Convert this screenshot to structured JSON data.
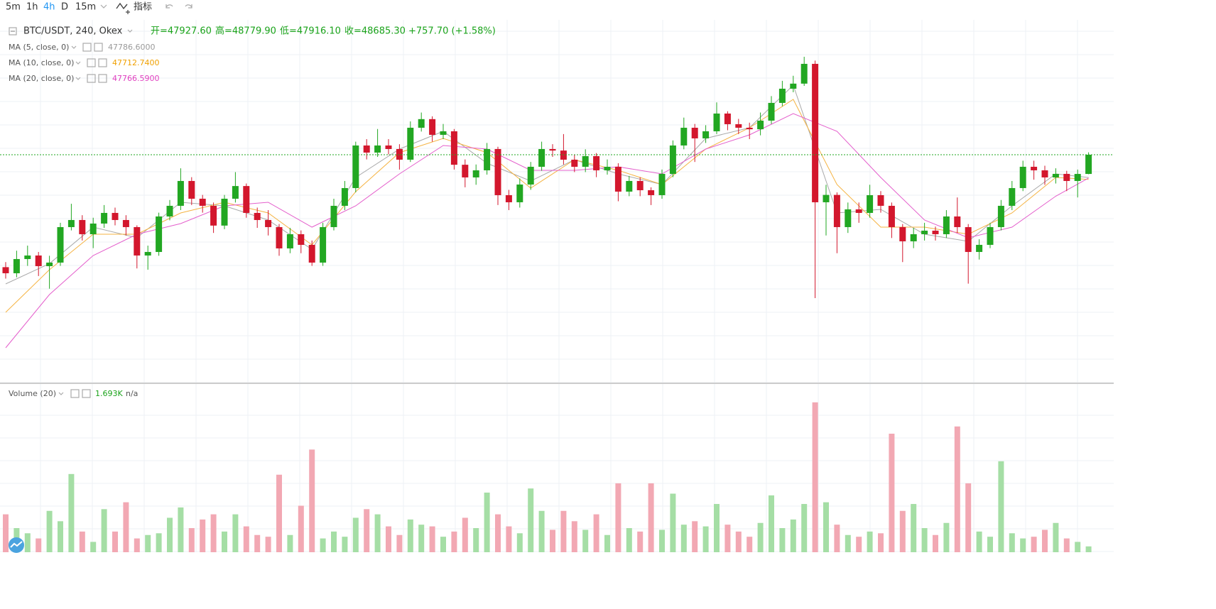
{
  "toolbar": {
    "intervals": [
      "5m",
      "1h",
      "4h",
      "D",
      "15m"
    ],
    "active_index": 2,
    "indicators": "指标"
  },
  "chart_data": {
    "type": "candlestick",
    "symbol": "BTC/USDT, 240, Okex",
    "ohlc_text": [
      "开=47927.60",
      "高=48779.90",
      "低=47916.10",
      "收=48685.30"
    ],
    "change_text": "+757.70 (+1.58%)",
    "up_color": "#22a722",
    "down_color": "#d3172d",
    "ylim": [
      39669,
      54005
    ],
    "open": [
      44250,
      44010,
      44570,
      44710,
      44290,
      44430,
      45830,
      46110,
      45550,
      45970,
      46390,
      46110,
      45830,
      44710,
      44850,
      46250,
      46670,
      47650,
      46950,
      46670,
      45890,
      46950,
      47450,
      46390,
      46110,
      45830,
      44990,
      45550,
      45130,
      44430,
      45830,
      46670,
      47370,
      49050,
      48770,
      49050,
      48910,
      48490,
      49750,
      50090,
      49470,
      49610,
      48290,
      47790,
      48070,
      48910,
      47090,
      46810,
      47510,
      48210,
      48910,
      48850,
      48490,
      48210,
      48630,
      48070,
      48210,
      47230,
      47650,
      47285,
      47090,
      47930,
      49050,
      49750,
      49330,
      49610,
      50310,
      49890,
      49750,
      49690,
      50030,
      50730,
      51290,
      51490,
      52270,
      46810,
      47100,
      45830,
      46530,
      46390,
      47090,
      46670,
      45830,
      45270,
      45550,
      45690,
      45550,
      46250,
      45830,
      44850,
      45130,
      45830,
      46670,
      47370,
      48210,
      48070,
      47790,
      47930,
      47650,
      47927.6
    ],
    "high": [
      44450,
      44900,
      45100,
      44850,
      44700,
      46000,
      46750,
      46300,
      46200,
      46700,
      46600,
      46300,
      45900,
      45100,
      46400,
      46900,
      48150,
      47800,
      47100,
      46800,
      47100,
      48000,
      47550,
      46600,
      46500,
      45950,
      45800,
      45700,
      45300,
      46000,
      46950,
      47650,
      49200,
      49300,
      49700,
      49300,
      49100,
      50000,
      50350,
      50200,
      49900,
      49700,
      48500,
      48300,
      49150,
      49000,
      47300,
      47750,
      48400,
      49200,
      49100,
      49500,
      48700,
      48900,
      48750,
      48500,
      48350,
      47850,
      47800,
      47400,
      48100,
      49250,
      50150,
      49900,
      49850,
      50750,
      50400,
      50100,
      49950,
      50350,
      51000,
      51600,
      51800,
      52550,
      52400,
      47500,
      47200,
      46800,
      46800,
      47500,
      47250,
      46800,
      45950,
      45800,
      46000,
      45850,
      46500,
      47000,
      45950,
      45350,
      46000,
      46900,
      47650,
      48450,
      48450,
      48250,
      48150,
      48050,
      48100,
      48779.9
    ],
    "low": [
      43800,
      43850,
      44300,
      43900,
      43400,
      44300,
      45700,
      45300,
      45000,
      45800,
      45900,
      45500,
      44200,
      44150,
      44700,
      46100,
      46500,
      46700,
      46400,
      45600,
      45750,
      46800,
      46200,
      45800,
      45500,
      44700,
      44800,
      44800,
      44300,
      44300,
      45700,
      46500,
      47200,
      48500,
      48600,
      48700,
      48100,
      48400,
      49600,
      49200,
      49300,
      48100,
      47400,
      47500,
      47900,
      46700,
      46500,
      46600,
      47300,
      48050,
      48600,
      48300,
      48000,
      48000,
      47800,
      47900,
      46850,
      47050,
      47050,
      46700,
      46950,
      47800,
      48900,
      48400,
      49150,
      49500,
      49650,
      49500,
      49300,
      49450,
      49900,
      50600,
      51150,
      51400,
      43030,
      45500,
      44800,
      45600,
      46000,
      46200,
      46400,
      45400,
      44450,
      45000,
      45300,
      45300,
      45400,
      45600,
      43600,
      44550,
      45000,
      45700,
      46500,
      47250,
      47700,
      47500,
      47550,
      47250,
      47000,
      47916.1
    ],
    "close": [
      44010,
      44570,
      44710,
      44290,
      44430,
      45830,
      46110,
      45550,
      45970,
      46390,
      46110,
      45830,
      44710,
      44850,
      46250,
      46670,
      47650,
      46950,
      46670,
      45890,
      46950,
      47450,
      46390,
      46110,
      45830,
      44990,
      45550,
      45130,
      44430,
      45830,
      46670,
      47370,
      49050,
      48770,
      49050,
      48910,
      48490,
      49750,
      50090,
      49470,
      49610,
      48290,
      47790,
      48070,
      48910,
      47090,
      46810,
      47510,
      48210,
      48910,
      48850,
      48490,
      48210,
      48630,
      48070,
      48210,
      47230,
      47650,
      47285,
      47090,
      47930,
      49050,
      49750,
      49330,
      49610,
      50310,
      49890,
      49750,
      49690,
      50030,
      50730,
      51290,
      51490,
      52270,
      46810,
      47100,
      45830,
      46530,
      46390,
      47090,
      46670,
      45830,
      45270,
      45550,
      45690,
      45550,
      46250,
      45830,
      44850,
      45130,
      45830,
      46670,
      47370,
      48210,
      48070,
      47790,
      47930,
      47650,
      47927.6,
      48685.3
    ],
    "moving_averages": [
      {
        "name": "MA (5, close, 0)",
        "value_label": "47786.6000",
        "color": "#a9a9a9",
        "label_color": "#9a9a9a",
        "x": [
          0,
          4,
          8,
          12,
          16,
          20,
          24,
          28,
          32,
          36,
          40,
          44,
          48,
          52,
          56,
          60,
          64,
          68,
          72,
          76,
          80,
          84,
          88,
          92,
          96,
          99
        ],
        "values": [
          43589,
          44389,
          45829,
          45409,
          46809,
          46669,
          46109,
          44949,
          47789,
          48909,
          49609,
          48349,
          47649,
          48489,
          47929,
          47509,
          49329,
          49749,
          51429,
          46389,
          46529,
          45549,
          45269,
          46669,
          47929,
          47786.6
        ]
      },
      {
        "name": "MA (10, close, 0)",
        "value_label": "47712.7400",
        "color": "#f5b342",
        "label_color": "#f0a000",
        "x": [
          0,
          4,
          8,
          12,
          16,
          20,
          24,
          28,
          32,
          36,
          40,
          44,
          48,
          52,
          56,
          60,
          64,
          68,
          72,
          76,
          80,
          84,
          88,
          92,
          96,
          99
        ],
        "values": [
          42469,
          44149,
          45549,
          45549,
          46389,
          46809,
          46389,
          45129,
          47229,
          48769,
          49329,
          48769,
          47369,
          48489,
          48069,
          47509,
          48909,
          49749,
          50869,
          47509,
          45829,
          45829,
          45549,
          46389,
          47789,
          47712.74
        ]
      },
      {
        "name": "MA (20, close, 0)",
        "value_label": "47766.5900",
        "color": "#e45fcc",
        "label_color": "#e040c0",
        "x": [
          0,
          4,
          8,
          12,
          16,
          20,
          24,
          28,
          32,
          36,
          40,
          44,
          48,
          52,
          56,
          60,
          64,
          68,
          72,
          76,
          80,
          84,
          88,
          92,
          96,
          99
        ],
        "values": [
          41069,
          43169,
          44709,
          45549,
          45969,
          46669,
          46809,
          45829,
          46669,
          47929,
          49049,
          48909,
          48069,
          48069,
          48209,
          47929,
          48909,
          49469,
          50309,
          49609,
          47789,
          46109,
          45409,
          45829,
          47049,
          47766.59
        ]
      }
    ],
    "volume": {
      "name": "Volume (20)",
      "label": "1.693K",
      "status": "n/a",
      "up_color": "#a5dea5",
      "down_color": "#f2a8b3",
      "ylim": [
        0,
        48000
      ],
      "values": [
        11000,
        7000,
        5500,
        4000,
        12000,
        9000,
        22700,
        6000,
        3000,
        12500,
        6000,
        14500,
        4000,
        5000,
        5500,
        10000,
        13000,
        7000,
        9500,
        11000,
        6000,
        11000,
        7500,
        5000,
        4500,
        22500,
        5000,
        13500,
        29800,
        4000,
        6000,
        4500,
        10000,
        12500,
        11000,
        7500,
        5000,
        9500,
        8000,
        7500,
        4500,
        6000,
        10000,
        7000,
        17300,
        11000,
        7500,
        5500,
        18500,
        12000,
        6500,
        12000,
        9000,
        6500,
        11000,
        5000,
        20000,
        7000,
        6000,
        20000,
        6500,
        17000,
        8000,
        9000,
        7500,
        14000,
        8000,
        6000,
        4500,
        8500,
        16500,
        7000,
        9500,
        14000,
        43500,
        14500,
        8000,
        5000,
        4500,
        6000,
        5500,
        34400,
        12000,
        14000,
        7000,
        5000,
        8500,
        36500,
        20000,
        6000,
        4500,
        26400,
        5500,
        4000,
        4500,
        6500,
        8500,
        4000,
        3000,
        1693
      ]
    }
  }
}
